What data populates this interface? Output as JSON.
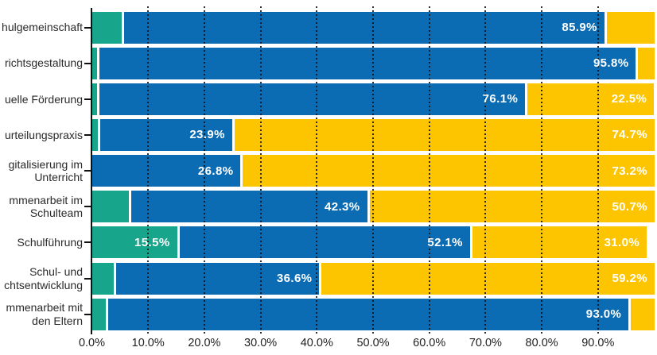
{
  "chart_data": {
    "type": "bar",
    "orientation": "horizontal",
    "stacked": true,
    "title": "",
    "xlabel": "",
    "ylabel": "",
    "xlim": [
      0,
      100
    ],
    "grid": "vertical-dotted",
    "legend": "none-visible",
    "x_tick_labels": [
      "0.0%",
      "10.0%",
      "20.0%",
      "30.0%",
      "40.0%",
      "50.0%",
      "60.0%",
      "70.0%",
      "80.0%",
      "90.0%"
    ],
    "x_tick_values": [
      0,
      10,
      20,
      30,
      40,
      50,
      60,
      70,
      80,
      90
    ],
    "colors": {
      "green": "#17A58B",
      "blue": "#0B6CB4",
      "yellow": "#FDC500"
    },
    "rows": [
      {
        "label_lines": [
          "hulgemeinschaft"
        ],
        "segments": [
          {
            "color": "green",
            "value": 5.6,
            "label": ""
          },
          {
            "color": "blue",
            "value": 85.9,
            "label": "85.9%"
          },
          {
            "color": "yellow",
            "value": 8.5,
            "label": ""
          }
        ]
      },
      {
        "label_lines": [
          "richtsgestaltung"
        ],
        "segments": [
          {
            "color": "green",
            "value": 1.3,
            "label": ""
          },
          {
            "color": "blue",
            "value": 95.8,
            "label": "95.8%"
          },
          {
            "color": "yellow",
            "value": 2.9,
            "label": ""
          }
        ]
      },
      {
        "label_lines": [
          "uelle Förderung"
        ],
        "segments": [
          {
            "color": "green",
            "value": 1.3,
            "label": ""
          },
          {
            "color": "blue",
            "value": 76.1,
            "label": "76.1%"
          },
          {
            "color": "yellow",
            "value": 22.5,
            "label": "22.5%"
          }
        ]
      },
      {
        "label_lines": [
          "urteilungspraxis"
        ],
        "segments": [
          {
            "color": "green",
            "value": 1.4,
            "label": ""
          },
          {
            "color": "blue",
            "value": 23.9,
            "label": "23.9%"
          },
          {
            "color": "yellow",
            "value": 74.7,
            "label": "74.7%"
          }
        ]
      },
      {
        "label_lines": [
          "gitalisierung im",
          "Unterricht"
        ],
        "segments": [
          {
            "color": "blue",
            "value": 26.8,
            "label": "26.8%"
          },
          {
            "color": "yellow",
            "value": 73.2,
            "label": "73.2%"
          }
        ]
      },
      {
        "label_lines": [
          "mmenarbeit im",
          "Schulteam"
        ],
        "segments": [
          {
            "color": "green",
            "value": 7.0,
            "label": ""
          },
          {
            "color": "blue",
            "value": 42.3,
            "label": "42.3%"
          },
          {
            "color": "yellow",
            "value": 50.7,
            "label": "50.7%"
          }
        ]
      },
      {
        "label_lines": [
          "Schulführung"
        ],
        "segments": [
          {
            "color": "green",
            "value": 15.5,
            "label": "15.5%"
          },
          {
            "color": "blue",
            "value": 52.1,
            "label": "52.1%"
          },
          {
            "color": "yellow",
            "value": 31.0,
            "label": "31.0%"
          }
        ]
      },
      {
        "label_lines": [
          "Schul- und",
          "chtsentwicklung"
        ],
        "segments": [
          {
            "color": "green",
            "value": 4.2,
            "label": ""
          },
          {
            "color": "blue",
            "value": 36.6,
            "label": "36.6%"
          },
          {
            "color": "yellow",
            "value": 59.2,
            "label": "59.2%"
          }
        ]
      },
      {
        "label_lines": [
          "mmenarbeit mit",
          "den Eltern"
        ],
        "segments": [
          {
            "color": "green",
            "value": 2.8,
            "label": ""
          },
          {
            "color": "blue",
            "value": 93.0,
            "label": "93.0%"
          },
          {
            "color": "yellow",
            "value": 4.2,
            "label": ""
          }
        ]
      }
    ]
  }
}
